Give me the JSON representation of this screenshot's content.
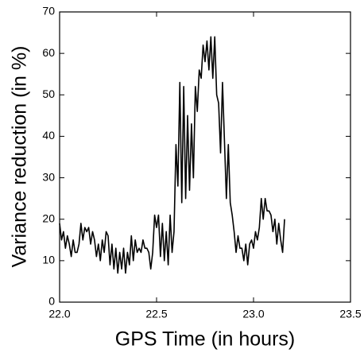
{
  "chart_data": {
    "type": "line",
    "xlabel": "GPS Time (in hours)",
    "ylabel": "Variance reduction (in %)",
    "color": "#000000",
    "x": [
      22.0,
      22.01,
      22.02,
      22.03,
      22.04,
      22.05,
      22.06,
      22.07,
      22.08,
      22.09,
      22.1,
      22.11,
      22.12,
      22.13,
      22.14,
      22.15,
      22.16,
      22.17,
      22.18,
      22.19,
      22.2,
      22.21,
      22.22,
      22.23,
      22.24,
      22.25,
      22.26,
      22.27,
      22.28,
      22.29,
      22.3,
      22.31,
      22.32,
      22.33,
      22.34,
      22.35,
      22.36,
      22.37,
      22.38,
      22.39,
      22.4,
      22.41,
      22.42,
      22.43,
      22.44,
      22.45,
      22.46,
      22.47,
      22.48,
      22.49,
      22.5,
      22.51,
      22.52,
      22.53,
      22.54,
      22.55,
      22.56,
      22.57,
      22.58,
      22.59,
      22.6,
      22.61,
      22.62,
      22.63,
      22.64,
      22.65,
      22.66,
      22.67,
      22.68,
      22.69,
      22.7,
      22.71,
      22.72,
      22.73,
      22.74,
      22.75,
      22.76,
      22.77,
      22.78,
      22.79,
      22.8,
      22.81,
      22.82,
      22.83,
      22.84,
      22.85,
      22.86,
      22.87,
      22.88,
      22.89,
      22.9,
      22.91,
      22.92,
      22.93,
      22.94,
      22.95,
      22.96,
      22.97,
      22.98,
      22.99,
      23.0,
      23.01,
      23.02,
      23.03,
      23.04,
      23.05,
      23.06,
      23.07,
      23.08,
      23.09,
      23.1,
      23.11,
      23.12,
      23.13,
      23.14,
      23.15,
      23.16
    ],
    "values": [
      19,
      15,
      17,
      13,
      16,
      14,
      11,
      15,
      12,
      12,
      14,
      19,
      15,
      18,
      17,
      18,
      14,
      17,
      15,
      11,
      14,
      10,
      15,
      12,
      17,
      16,
      9,
      14,
      8,
      13,
      7,
      12,
      8,
      13,
      7,
      12,
      9,
      16,
      10,
      15,
      12,
      13,
      12,
      15,
      13,
      13,
      12,
      8,
      12,
      21,
      18,
      21,
      11,
      19,
      10,
      17,
      9,
      21,
      12,
      17,
      38,
      28,
      53,
      24,
      52,
      25,
      45,
      27,
      43,
      30,
      52,
      46,
      56,
      54,
      62,
      58,
      63,
      56,
      64,
      54,
      64,
      50,
      48,
      36,
      53,
      39,
      25,
      38,
      24,
      21,
      17,
      12,
      16,
      13,
      13,
      10,
      14,
      9,
      14,
      15,
      13,
      17,
      15,
      18,
      25,
      20,
      25,
      22,
      22,
      21,
      17,
      20,
      14,
      19,
      15,
      12,
      20
    ],
    "xlim": [
      22.0,
      23.5
    ],
    "xticks": [
      {
        "value": 22.0,
        "label": "22.0"
      },
      {
        "value": 22.5,
        "label": "22.5"
      },
      {
        "value": 23.0,
        "label": "23.0"
      },
      {
        "value": 23.5,
        "label": "23.5"
      }
    ],
    "ylim": [
      0,
      70
    ],
    "yticks": [
      0,
      10,
      20,
      30,
      40,
      50,
      60,
      70
    ]
  }
}
